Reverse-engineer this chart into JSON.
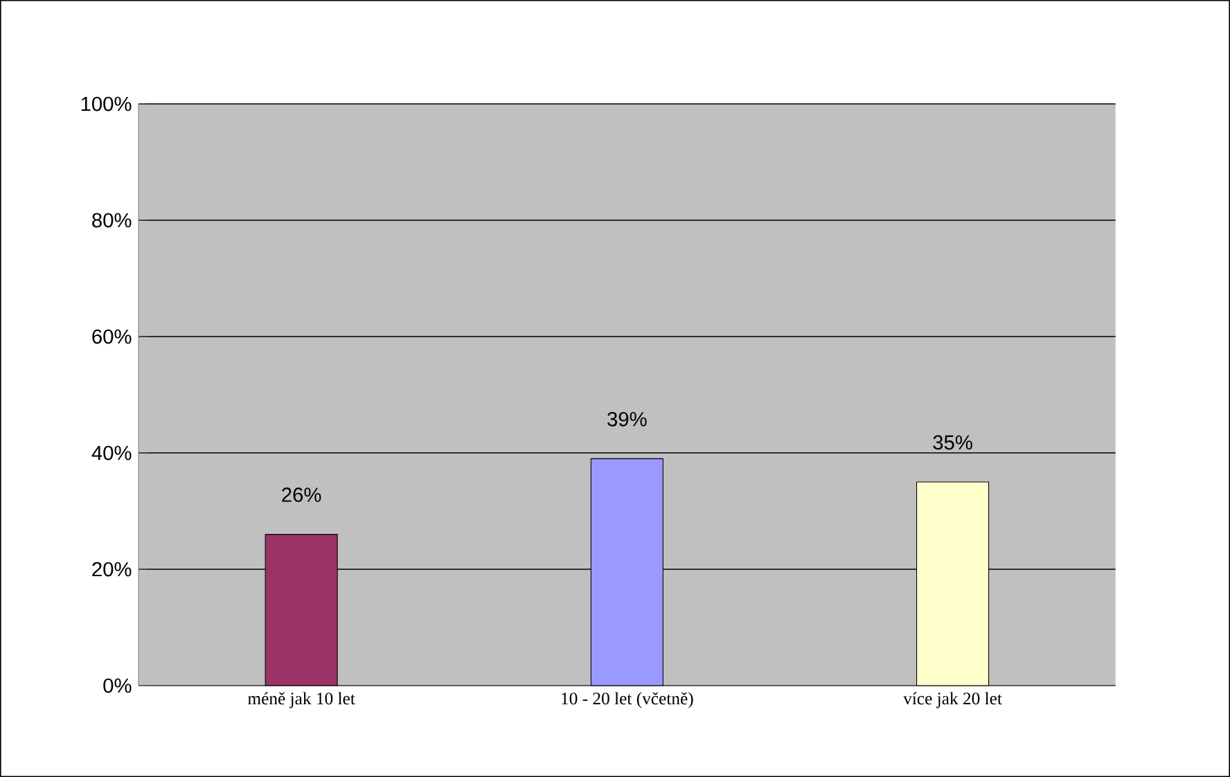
{
  "chart_data": {
    "type": "bar",
    "categories": [
      "méně jak 10 let",
      "10 - 20 let (včetně)",
      "více jak 20 let"
    ],
    "values": [
      26,
      39,
      35
    ],
    "colors": [
      "#993366",
      "#9999ff",
      "#ffffcc"
    ],
    "value_labels": [
      "26%",
      "39%",
      "35%"
    ],
    "ylim": [
      0,
      100
    ],
    "yticks": [
      {
        "value": 0,
        "label": "0%"
      },
      {
        "value": 20,
        "label": "20%"
      },
      {
        "value": 40,
        "label": "40%"
      },
      {
        "value": 60,
        "label": "60%"
      },
      {
        "value": 80,
        "label": "80%"
      },
      {
        "value": 100,
        "label": "100%"
      }
    ],
    "grid": "y"
  }
}
